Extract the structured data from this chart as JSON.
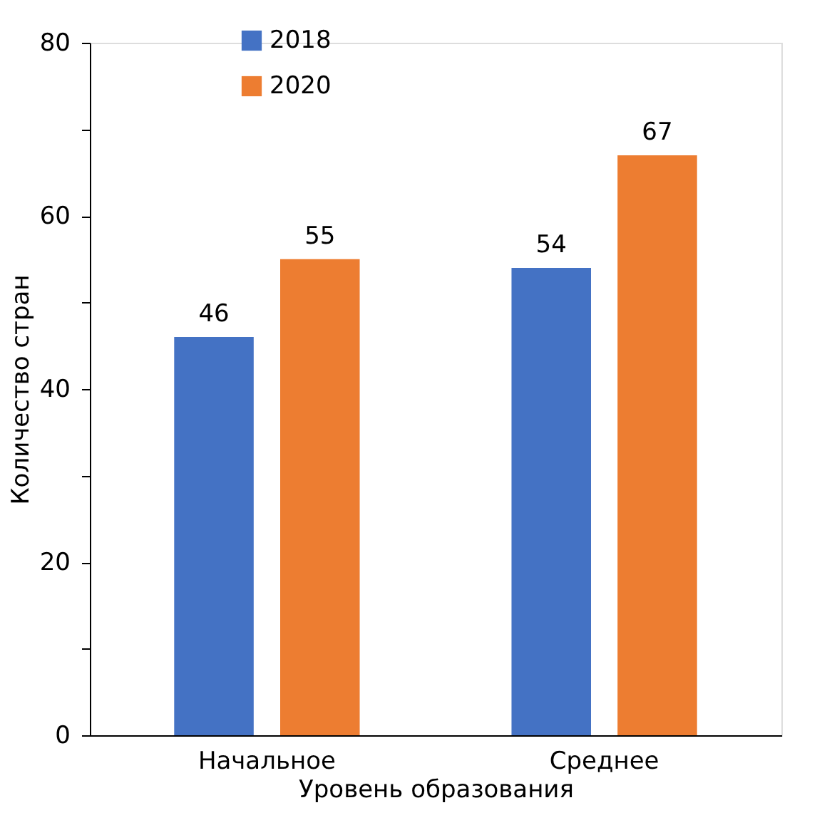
{
  "chart_data": {
    "type": "bar",
    "xlabel": "Уровень образования",
    "ylabel": "Количество стран",
    "categories": [
      "Начальное",
      "Среднее"
    ],
    "series": [
      {
        "name": "2018",
        "color": "#4472c4",
        "values": [
          46,
          54
        ]
      },
      {
        "name": "2020",
        "color": "#ed7d31",
        "values": [
          55,
          67
        ]
      }
    ],
    "ylim": [
      0,
      80
    ],
    "yticks": [
      0,
      {
        "value": 10,
        "label": null
      },
      20,
      {
        "value": 30,
        "label": null
      },
      40,
      {
        "value": 50,
        "label": null
      },
      60,
      {
        "value": 70,
        "label": null
      },
      80
    ],
    "data_labels": true,
    "grid": false,
    "legend": "top left"
  }
}
